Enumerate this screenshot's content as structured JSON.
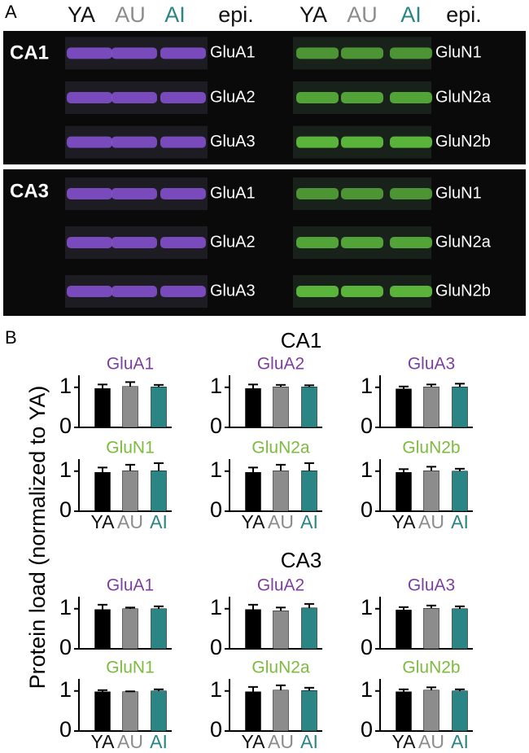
{
  "panel_a": {
    "label": "A",
    "lane_colors": [
      "#111111",
      "#8c8c8c",
      "#2b8585",
      "#111111"
    ],
    "headers": [
      [
        "YA",
        "AU",
        "AI",
        "epi."
      ],
      [
        "YA",
        "AU",
        "AI",
        "epi."
      ]
    ],
    "regions": [
      {
        "name": "CA1",
        "left": [
          "GluA1",
          "GluA2",
          "GluA3"
        ],
        "right": [
          "GluN1",
          "GluN2a",
          "GluN2b"
        ]
      },
      {
        "name": "CA3",
        "left": [
          "GluA1",
          "GluA2",
          "GluA3"
        ],
        "right": [
          "GluN1",
          "GluN2a",
          "GluN2b"
        ]
      }
    ]
  },
  "panel_b": {
    "label": "B",
    "ylabel": "Protein load (normalized to YA)",
    "sections": [
      "CA1",
      "CA3"
    ]
  },
  "chart_data": [
    {
      "type": "bar",
      "title": "GluA1",
      "title_color": "#7b3fa0",
      "categories": [
        null,
        null,
        null
      ],
      "values": [
        0.97,
        1.02,
        1.01
      ],
      "errors": [
        0.1,
        0.11,
        0.05
      ],
      "colors": [
        "#000000",
        "#8c8c8c",
        "#2b8585"
      ],
      "ylim": [
        0,
        1.3
      ],
      "yticks": [
        0,
        1
      ],
      "grid": false
    },
    {
      "type": "bar",
      "title": "GluA2",
      "title_color": "#7b3fa0",
      "categories": [
        null,
        null,
        null
      ],
      "values": [
        0.97,
        1.01,
        1.01
      ],
      "errors": [
        0.1,
        0.05,
        0.04
      ],
      "colors": [
        "#000000",
        "#8c8c8c",
        "#2b8585"
      ],
      "ylim": [
        0,
        1.3
      ],
      "yticks": [
        0,
        1
      ],
      "grid": false
    },
    {
      "type": "bar",
      "title": "GluA3",
      "title_color": "#7b3fa0",
      "categories": [
        null,
        null,
        null
      ],
      "values": [
        0.96,
        1.01,
        1.01
      ],
      "errors": [
        0.06,
        0.06,
        0.08
      ],
      "colors": [
        "#000000",
        "#8c8c8c",
        "#2b8585"
      ],
      "ylim": [
        0,
        1.3
      ],
      "yticks": [
        0,
        1
      ],
      "grid": false
    },
    {
      "type": "bar",
      "title": "GluN1",
      "title_color": "#7cbb3c",
      "categories": [
        "YA",
        "AU",
        "AI"
      ],
      "values": [
        0.97,
        1.01,
        1.01
      ],
      "errors": [
        0.12,
        0.15,
        0.19
      ],
      "colors": [
        "#000000",
        "#8c8c8c",
        "#2b8585"
      ],
      "ylim": [
        0,
        1.3
      ],
      "yticks": [
        0,
        1
      ],
      "grid": false
    },
    {
      "type": "bar",
      "title": "GluN2a",
      "title_color": "#7cbb3c",
      "categories": [
        "YA",
        "AU",
        "AI"
      ],
      "values": [
        0.97,
        1.01,
        1.01
      ],
      "errors": [
        0.12,
        0.15,
        0.19
      ],
      "colors": [
        "#000000",
        "#8c8c8c",
        "#2b8585"
      ],
      "ylim": [
        0,
        1.3
      ],
      "yticks": [
        0,
        1
      ],
      "grid": false
    },
    {
      "type": "bar",
      "title": "GluN2b",
      "title_color": "#7cbb3c",
      "categories": [
        "YA",
        "AU",
        "AI"
      ],
      "values": [
        0.97,
        1.01,
        1.0
      ],
      "errors": [
        0.08,
        0.1,
        0.06
      ],
      "colors": [
        "#000000",
        "#8c8c8c",
        "#2b8585"
      ],
      "ylim": [
        0,
        1.3
      ],
      "yticks": [
        0,
        1
      ],
      "grid": false
    },
    {
      "type": "bar",
      "title": "GluA1",
      "title_color": "#7b3fa0",
      "categories": [
        null,
        null,
        null
      ],
      "values": [
        0.98,
        1.0,
        1.0
      ],
      "errors": [
        0.12,
        0.03,
        0.06
      ],
      "colors": [
        "#000000",
        "#8c8c8c",
        "#2b8585"
      ],
      "ylim": [
        0,
        1.3
      ],
      "yticks": [
        0,
        1
      ],
      "grid": false
    },
    {
      "type": "bar",
      "title": "GluA2",
      "title_color": "#7b3fa0",
      "categories": [
        null,
        null,
        null
      ],
      "values": [
        0.98,
        0.95,
        1.02
      ],
      "errors": [
        0.12,
        0.08,
        0.1
      ],
      "colors": [
        "#000000",
        "#8c8c8c",
        "#2b8585"
      ],
      "ylim": [
        0,
        1.3
      ],
      "yticks": [
        0,
        1
      ],
      "grid": false
    },
    {
      "type": "bar",
      "title": "GluA3",
      "title_color": "#7b3fa0",
      "categories": [
        null,
        null,
        null
      ],
      "values": [
        0.97,
        1.01,
        1.0
      ],
      "errors": [
        0.07,
        0.07,
        0.06
      ],
      "colors": [
        "#000000",
        "#8c8c8c",
        "#2b8585"
      ],
      "ylim": [
        0,
        1.3
      ],
      "yticks": [
        0,
        1
      ],
      "grid": false
    },
    {
      "type": "bar",
      "title": "GluN1",
      "title_color": "#7cbb3c",
      "categories": [
        "YA",
        "AU",
        "AI"
      ],
      "values": [
        0.98,
        0.98,
        1.0
      ],
      "errors": [
        0.04,
        0.01,
        0.04
      ],
      "colors": [
        "#000000",
        "#8c8c8c",
        "#2b8585"
      ],
      "ylim": [
        0,
        1.3
      ],
      "yticks": [
        0,
        1
      ],
      "grid": false
    },
    {
      "type": "bar",
      "title": "GluN2a",
      "title_color": "#7cbb3c",
      "categories": [
        "YA",
        "AU",
        "AI"
      ],
      "values": [
        0.98,
        1.02,
        1.01
      ],
      "errors": [
        0.12,
        0.12,
        0.07
      ],
      "colors": [
        "#000000",
        "#8c8c8c",
        "#2b8585"
      ],
      "ylim": [
        0,
        1.3
      ],
      "yticks": [
        0,
        1
      ],
      "grid": false
    },
    {
      "type": "bar",
      "title": "GluN2b",
      "title_color": "#7cbb3c",
      "categories": [
        "YA",
        "AU",
        "AI"
      ],
      "values": [
        0.98,
        1.02,
        1.0
      ],
      "errors": [
        0.06,
        0.07,
        0.04
      ],
      "colors": [
        "#000000",
        "#8c8c8c",
        "#2b8585"
      ],
      "ylim": [
        0,
        1.3
      ],
      "yticks": [
        0,
        1
      ],
      "grid": false
    }
  ]
}
